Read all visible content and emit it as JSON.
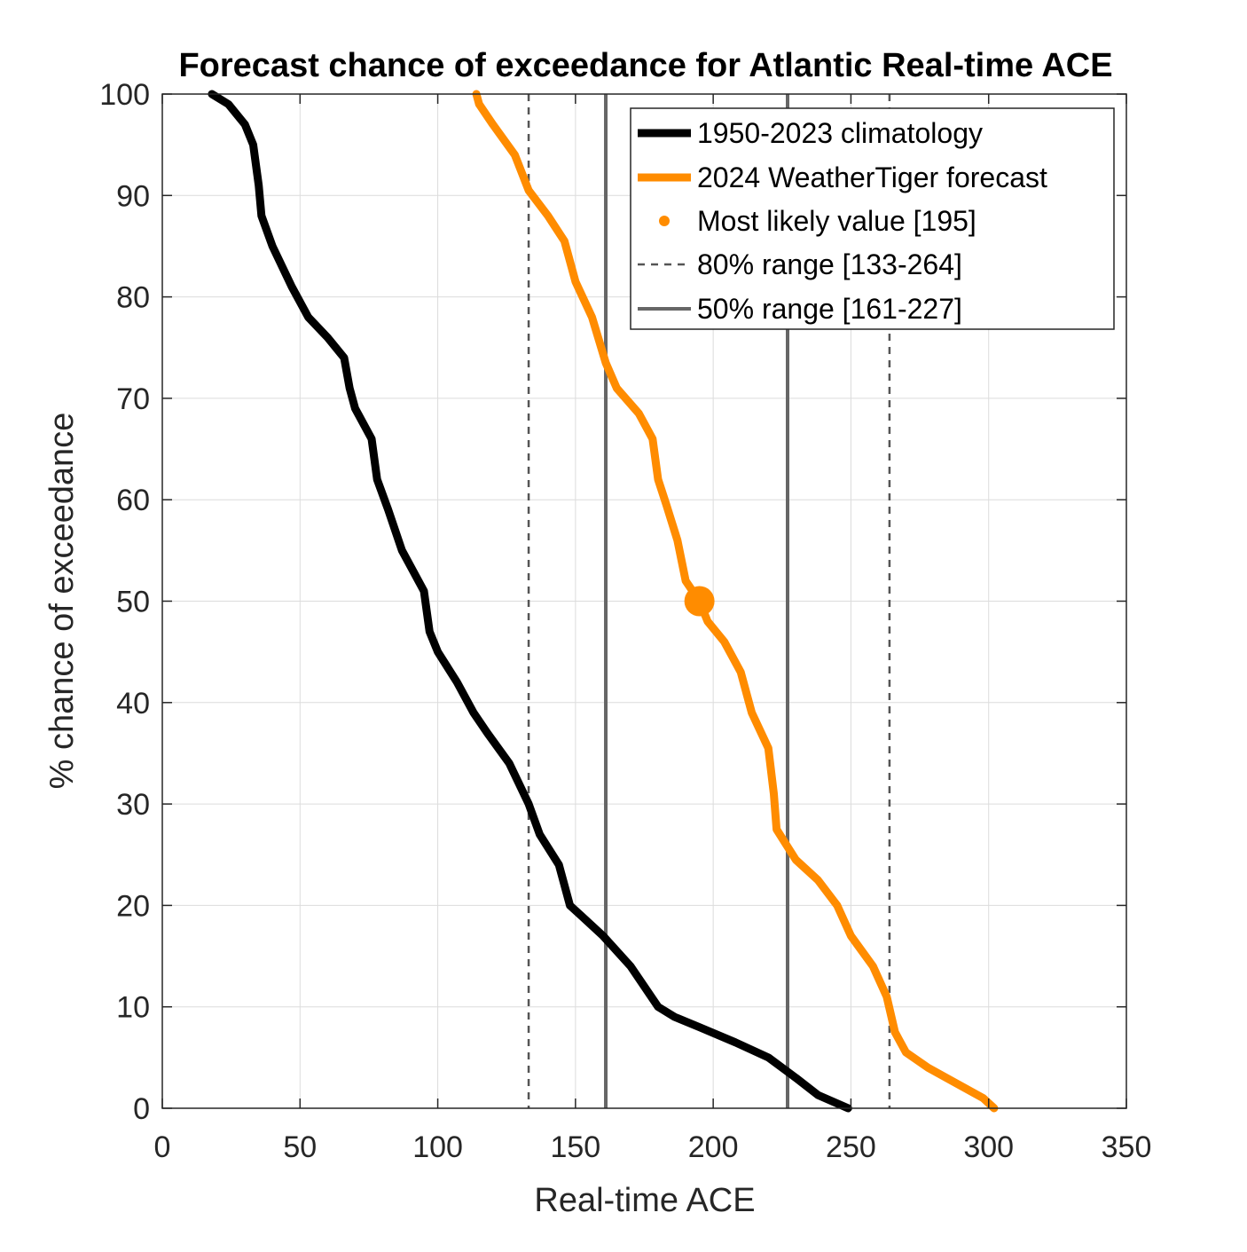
{
  "chart_data": {
    "type": "line",
    "title": "Forecast chance of exceedance for Atlantic Real-time ACE",
    "xlabel": "Real-time ACE",
    "ylabel": "% chance of exceedance",
    "xlim": [
      0,
      350
    ],
    "ylim": [
      0,
      100
    ],
    "xticks": [
      0,
      50,
      100,
      150,
      200,
      250,
      300,
      350
    ],
    "yticks": [
      0,
      10,
      20,
      30,
      40,
      50,
      60,
      70,
      80,
      90,
      100
    ],
    "grid": true,
    "legend_position": "top-right",
    "series": [
      {
        "name": "1950-2023 climatology",
        "color": "#000000",
        "points": [
          [
            18,
            100
          ],
          [
            24,
            99
          ],
          [
            30,
            97
          ],
          [
            33,
            95
          ],
          [
            35,
            91
          ],
          [
            36,
            88
          ],
          [
            40,
            85
          ],
          [
            47,
            81
          ],
          [
            53,
            78
          ],
          [
            60,
            76
          ],
          [
            66,
            74
          ],
          [
            68,
            71
          ],
          [
            70,
            69
          ],
          [
            76,
            66
          ],
          [
            78,
            62
          ],
          [
            82,
            59
          ],
          [
            87,
            55
          ],
          [
            95,
            51
          ],
          [
            97,
            47
          ],
          [
            100,
            45
          ],
          [
            107,
            42
          ],
          [
            113,
            39
          ],
          [
            118,
            37
          ],
          [
            126,
            34
          ],
          [
            133,
            30
          ],
          [
            137,
            27
          ],
          [
            144,
            24
          ],
          [
            148,
            20
          ],
          [
            152,
            19
          ],
          [
            160,
            17
          ],
          [
            170,
            14
          ],
          [
            180,
            10
          ],
          [
            186,
            9
          ],
          [
            195,
            8
          ],
          [
            208,
            6.5
          ],
          [
            220,
            5
          ],
          [
            230,
            3
          ],
          [
            238,
            1.3
          ],
          [
            249,
            0
          ]
        ]
      },
      {
        "name": "2024 WeatherTiger forecast",
        "color": "#ff8c00",
        "points": [
          [
            114,
            100
          ],
          [
            115,
            99
          ],
          [
            120,
            97
          ],
          [
            128,
            94
          ],
          [
            133,
            90.5
          ],
          [
            140,
            88
          ],
          [
            146,
            85.5
          ],
          [
            150,
            81.5
          ],
          [
            156,
            78
          ],
          [
            161,
            73.5
          ],
          [
            165,
            71
          ],
          [
            173,
            68.5
          ],
          [
            178,
            66
          ],
          [
            180,
            62
          ],
          [
            183,
            59.5
          ],
          [
            187,
            56
          ],
          [
            190,
            52
          ],
          [
            195,
            50
          ],
          [
            198,
            48
          ],
          [
            204,
            46
          ],
          [
            210,
            43
          ],
          [
            214,
            39
          ],
          [
            220,
            35.5
          ],
          [
            222,
            31
          ],
          [
            223,
            27.5
          ],
          [
            230,
            24.5
          ],
          [
            238,
            22.5
          ],
          [
            245,
            20
          ],
          [
            250,
            17
          ],
          [
            258,
            14
          ],
          [
            263,
            11
          ],
          [
            266,
            7.5
          ],
          [
            270,
            5.5
          ],
          [
            278,
            4
          ],
          [
            288,
            2.5
          ],
          [
            298,
            1
          ],
          [
            302,
            0
          ]
        ]
      }
    ],
    "most_likely": {
      "name": "Most likely value [195]",
      "x": 195,
      "y": 50,
      "color": "#ff8c00"
    },
    "ranges": [
      {
        "name": "80% range [133-264]",
        "low": 133,
        "high": 264,
        "style": "dashed",
        "color": "#555555"
      },
      {
        "name": "50% range [161-227]",
        "low": 161,
        "high": 227,
        "style": "solid",
        "color": "#666666"
      }
    ]
  }
}
